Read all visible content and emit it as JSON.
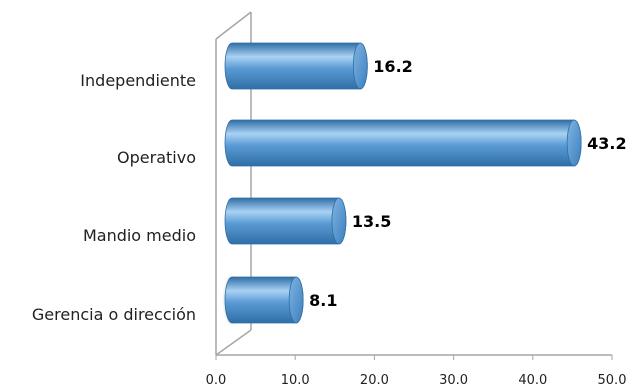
{
  "chart_data": {
    "type": "bar",
    "orientation": "horizontal",
    "style": "3d-cylinder",
    "categories": [
      "Independiente",
      "Operativo",
      "Mandio medio",
      "Gerencia o dirección"
    ],
    "values": [
      16.2,
      43.2,
      13.5,
      8.1
    ],
    "value_labels": [
      "16.2",
      "43.2",
      "13.5",
      "8.1"
    ],
    "xlim": [
      0,
      50
    ],
    "x_ticks": [
      "0.0",
      "10.0",
      "20.0",
      "30.0",
      "40.0",
      "50.0"
    ],
    "grid": false,
    "legend": "none",
    "colors": {
      "bar": "#5b9bd5",
      "bar_light": "#a9d2f3",
      "bar_dark": "#2f6ea6",
      "axis": "#a6a6a6"
    }
  }
}
